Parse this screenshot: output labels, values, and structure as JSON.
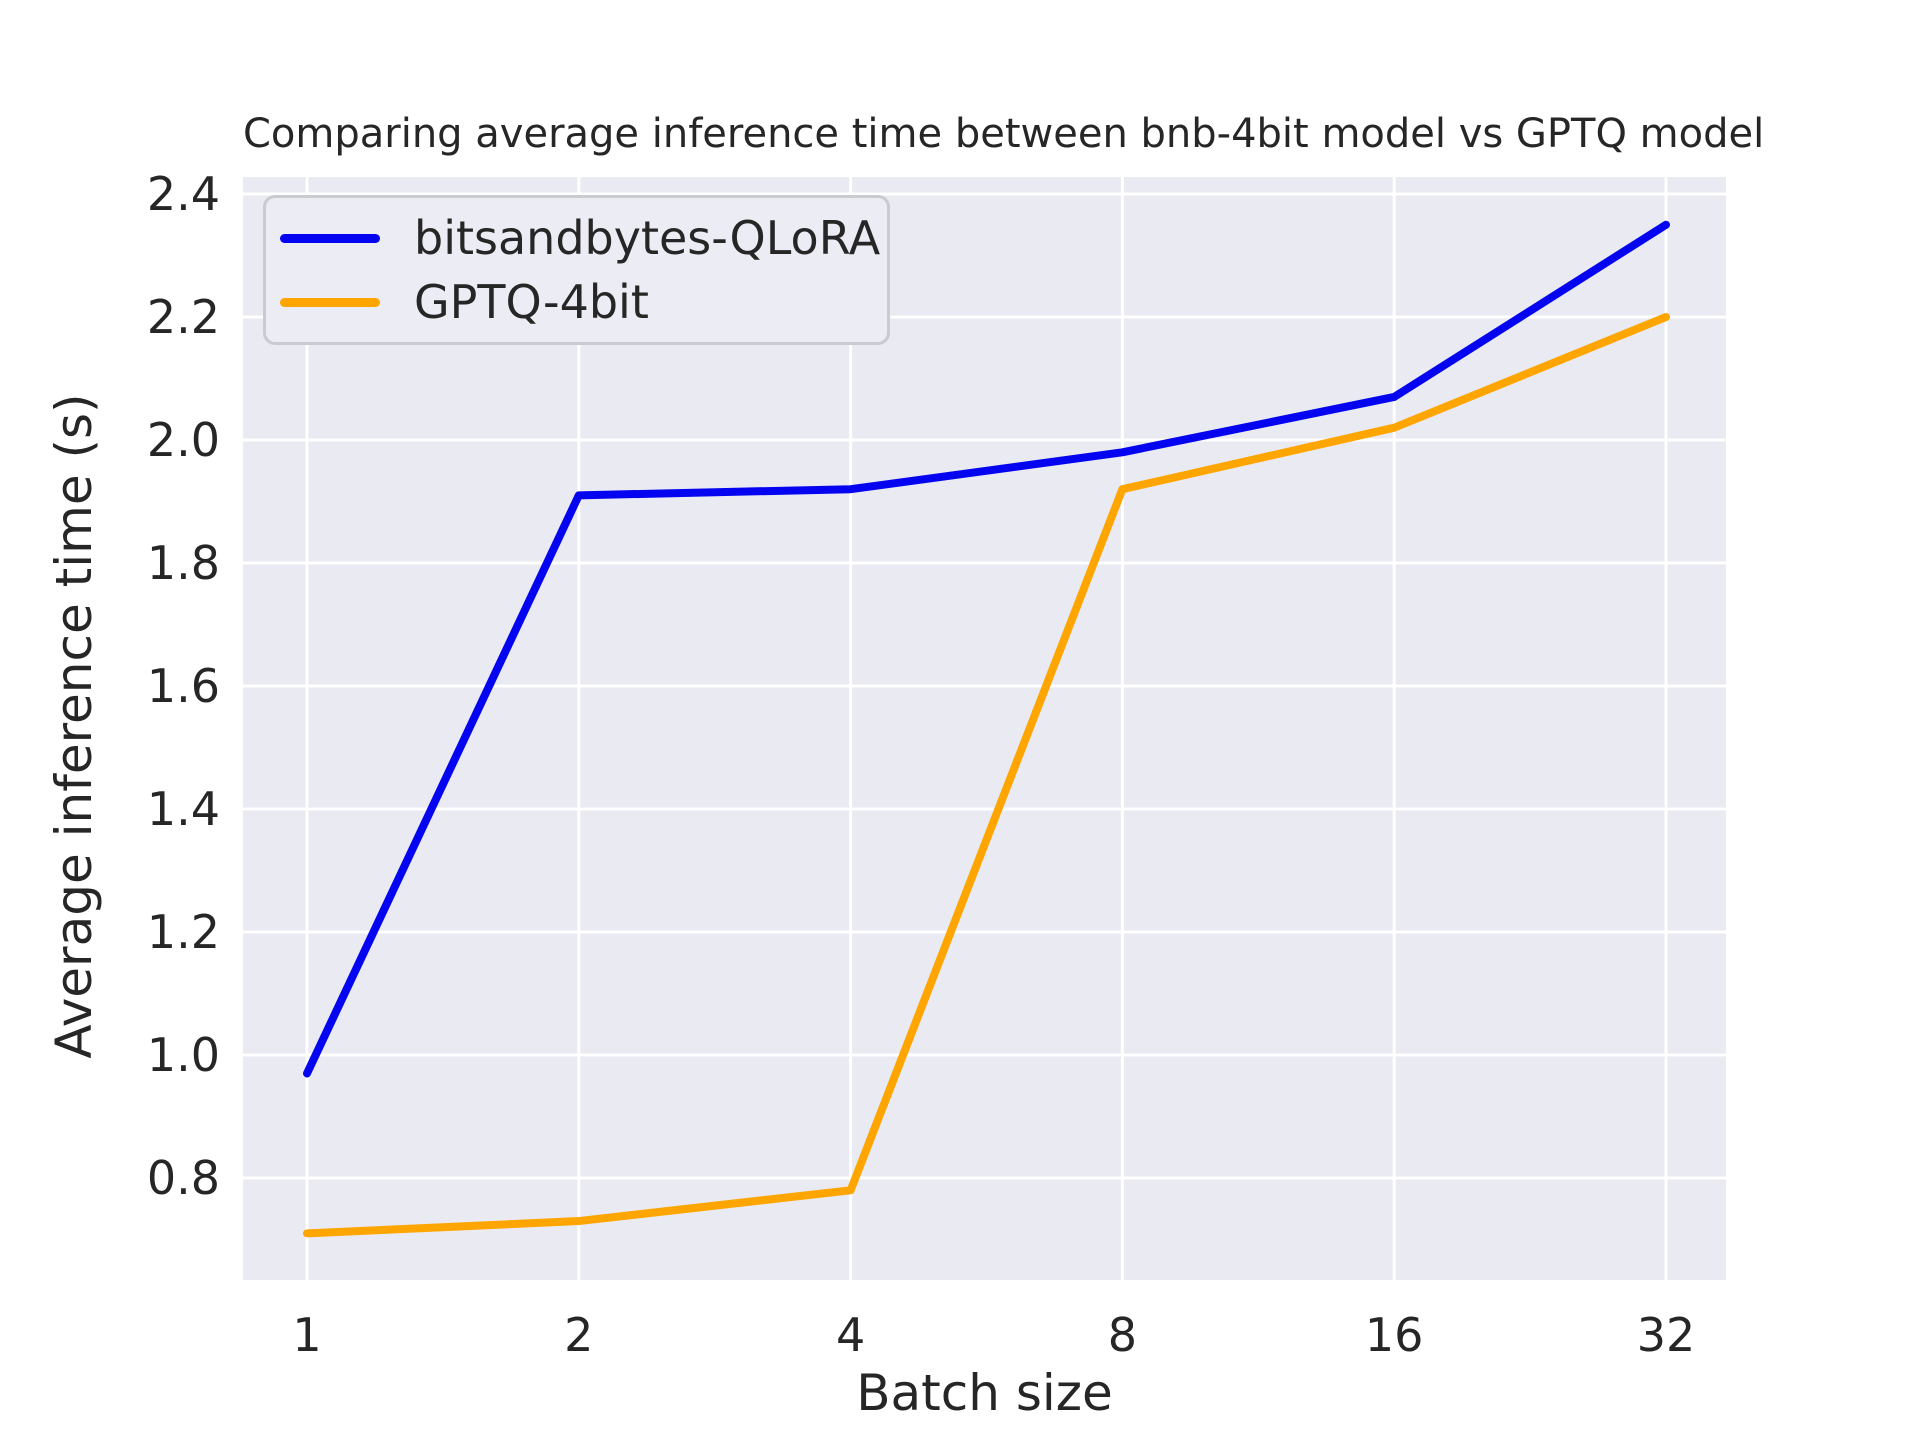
{
  "figure": {
    "background": "#ffffff",
    "axes_background": "#eaeaf2",
    "grid_color": "#ffffff",
    "text_color": "#262626",
    "legend_border_color": "#cacad1",
    "legend_background": "#ececf4"
  },
  "chart_data": {
    "type": "line",
    "title": "Comparing average inference time between bnb-4bit model vs GPTQ model",
    "xlabel": "Batch size",
    "ylabel": "Average inference time (s)",
    "x_scale": "log2",
    "categories": [
      1,
      2,
      4,
      8,
      16,
      32
    ],
    "x_tick_labels": [
      "1",
      "2",
      "4",
      "8",
      "16",
      "32"
    ],
    "y_ticks": [
      2.4,
      2.2,
      2.0,
      1.8,
      1.6,
      1.4,
      1.2,
      1.0,
      0.8
    ],
    "y_tick_labels": [
      "2.4",
      "2.2",
      "2.0",
      "1.8",
      "1.6",
      "1.4",
      "1.2",
      "1.0",
      "0.8"
    ],
    "ylim": [
      0.634,
      2.428
    ],
    "grid": true,
    "legend_position": "upper left",
    "series": [
      {
        "name": "bitsandbytes-QLoRA",
        "color": "#0404f0",
        "values": [
          0.97,
          1.91,
          1.92,
          1.98,
          2.07,
          2.35
        ]
      },
      {
        "name": "GPTQ-4bit",
        "color": "#ffa500",
        "values": [
          0.71,
          0.73,
          0.78,
          1.92,
          2.02,
          2.2
        ]
      }
    ]
  }
}
